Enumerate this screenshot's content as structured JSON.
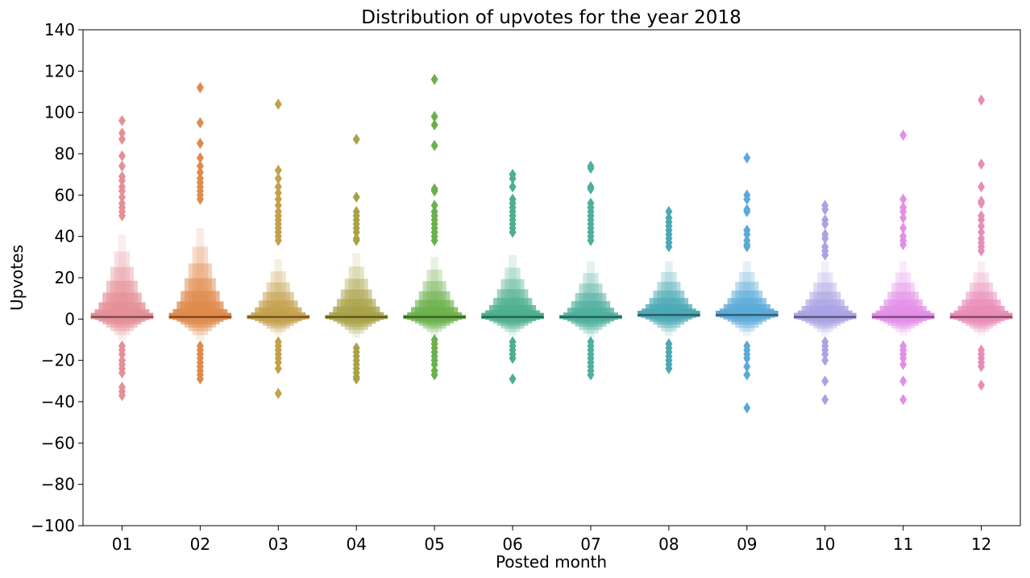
{
  "chart_data": {
    "type": "boxen",
    "title": "Distribution of upvotes for the year 2018",
    "xlabel": "Posted month",
    "ylabel": "Upvotes",
    "ylim": [
      -100,
      140
    ],
    "yticks": [
      -100,
      -80,
      -60,
      -40,
      -20,
      0,
      20,
      40,
      60,
      80,
      100,
      120,
      140
    ],
    "ytick_labels": [
      "−100",
      "−80",
      "−60",
      "−40",
      "−20",
      "0",
      "20",
      "40",
      "60",
      "80",
      "100",
      "120",
      "140"
    ],
    "grid": false,
    "categories": [
      "01",
      "02",
      "03",
      "04",
      "05",
      "06",
      "07",
      "08",
      "09",
      "10",
      "11",
      "12"
    ],
    "series": [
      {
        "category": "01",
        "color": "#e58f96",
        "median": 1,
        "box": [
          0,
          3
        ],
        "upper_tail": 41,
        "lower_tail": -10,
        "outliers": [
          96,
          90,
          87,
          79,
          74,
          69,
          67,
          64,
          62,
          59,
          56,
          54,
          52,
          50,
          -13,
          -15,
          -17,
          -20,
          -22,
          -24,
          -26,
          -33,
          -35,
          -37
        ]
      },
      {
        "category": "02",
        "color": "#e08a4b",
        "median": 1,
        "box": [
          0,
          3
        ],
        "upper_tail": 44,
        "lower_tail": -10,
        "outliers": [
          112,
          95,
          85,
          78,
          74,
          71,
          68,
          66,
          64,
          62,
          60,
          58,
          -13,
          -15,
          -17,
          -19,
          -21,
          -23,
          -25,
          -27,
          -29
        ]
      },
      {
        "category": "03",
        "color": "#c4a04b",
        "median": 1,
        "box": [
          0,
          2
        ],
        "upper_tail": 29,
        "lower_tail": -8,
        "outliers": [
          104,
          72,
          68,
          64,
          61,
          58,
          55,
          52,
          50,
          48,
          46,
          44,
          42,
          40,
          38,
          -11,
          -13,
          -15,
          -17,
          -19,
          -21,
          -24,
          -36
        ]
      },
      {
        "category": "04",
        "color": "#a8a247",
        "median": 1,
        "box": [
          0,
          2
        ],
        "upper_tail": 32,
        "lower_tail": -9,
        "outliers": [
          87,
          59,
          52,
          50,
          48,
          46,
          44,
          42,
          39,
          38,
          -14,
          -16,
          -18,
          -20,
          -22,
          -24,
          -26,
          -28,
          -29
        ]
      },
      {
        "category": "05",
        "color": "#6bb04b",
        "median": 1,
        "box": [
          0,
          2
        ],
        "upper_tail": 30,
        "lower_tail": -8,
        "outliers": [
          116,
          98,
          94,
          84,
          63,
          62,
          55,
          52,
          50,
          48,
          46,
          44,
          42,
          40,
          38,
          -10,
          -12,
          -14,
          -16,
          -18,
          -20,
          -22,
          -25,
          -27
        ]
      },
      {
        "category": "06",
        "color": "#4daf8e",
        "median": 1,
        "box": [
          0,
          3
        ],
        "upper_tail": 31,
        "lower_tail": -8,
        "outliers": [
          70,
          68,
          64,
          58,
          56,
          54,
          52,
          50,
          48,
          46,
          44,
          42,
          -11,
          -13,
          -15,
          -17,
          -19,
          -29
        ]
      },
      {
        "category": "07",
        "color": "#4faf9f",
        "median": 1,
        "box": [
          0,
          2
        ],
        "upper_tail": 28,
        "lower_tail": -9,
        "outliers": [
          74,
          73,
          64,
          63,
          56,
          54,
          52,
          50,
          48,
          46,
          44,
          42,
          40,
          38,
          -11,
          -13,
          -15,
          -17,
          -19,
          -21,
          -23,
          -25,
          -27
        ]
      },
      {
        "category": "08",
        "color": "#4aa9b5",
        "median": 2,
        "box": [
          1,
          4
        ],
        "upper_tail": 28,
        "lower_tail": -8,
        "outliers": [
          52,
          49,
          47,
          45,
          43,
          41,
          39,
          37,
          35,
          -12,
          -14,
          -16,
          -18,
          -20,
          -22,
          -24
        ]
      },
      {
        "category": "09",
        "color": "#5aaad8",
        "median": 2,
        "box": [
          1,
          4
        ],
        "upper_tail": 28,
        "lower_tail": -8,
        "outliers": [
          78,
          60,
          58,
          53,
          52,
          43,
          41,
          38,
          36,
          35,
          -13,
          -15,
          -17,
          -19,
          -23,
          -27,
          -43
        ]
      },
      {
        "category": "10",
        "color": "#aaa3e3",
        "median": 1,
        "box": [
          0,
          3
        ],
        "upper_tail": 28,
        "lower_tail": -8,
        "outliers": [
          55,
          53,
          48,
          46,
          41,
          39,
          35,
          33,
          31,
          -11,
          -13,
          -15,
          -17,
          -20,
          -30,
          -39
        ]
      },
      {
        "category": "11",
        "color": "#e38ee8",
        "median": 1,
        "box": [
          0,
          3
        ],
        "upper_tail": 28,
        "lower_tail": -8,
        "outliers": [
          89,
          58,
          54,
          52,
          49,
          44,
          40,
          38,
          36,
          -13,
          -15,
          -17,
          -19,
          -22,
          -30,
          -39
        ]
      },
      {
        "category": "12",
        "color": "#e88cb8",
        "median": 1,
        "box": [
          0,
          3
        ],
        "upper_tail": 28,
        "lower_tail": -8,
        "outliers": [
          106,
          75,
          64,
          57,
          56,
          50,
          48,
          45,
          42,
          39,
          37,
          35,
          33,
          -15,
          -17,
          -19,
          -21,
          -23,
          -32
        ]
      }
    ]
  }
}
